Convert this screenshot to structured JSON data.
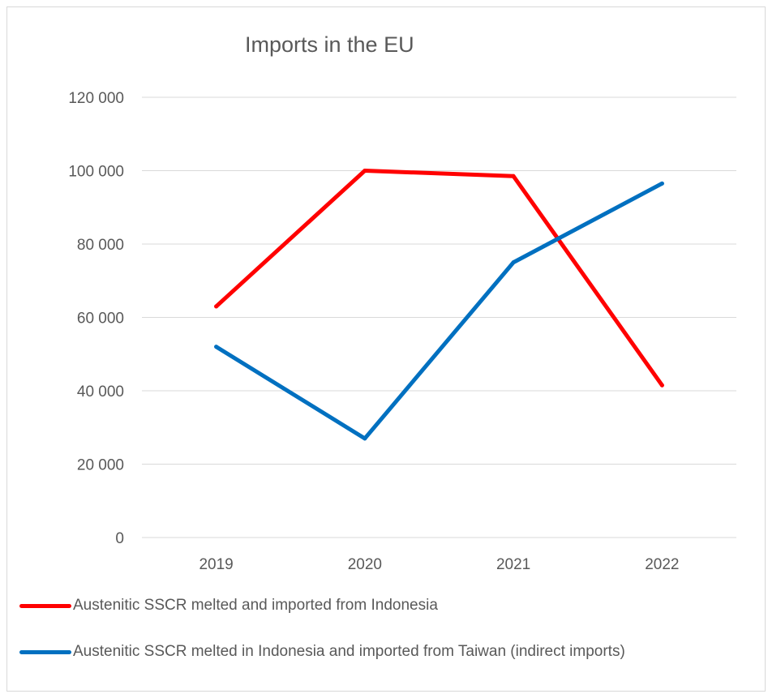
{
  "chart_data": {
    "type": "line",
    "title": "Imports in the EU",
    "xlabel": "",
    "ylabel": "",
    "categories": [
      "2019",
      "2020",
      "2021",
      "2022"
    ],
    "ylim": [
      0,
      120000
    ],
    "yticks": [
      0,
      20000,
      40000,
      60000,
      80000,
      100000,
      120000
    ],
    "ytick_labels": [
      "0",
      "20 000",
      "40 000",
      "60 000",
      "80 000",
      "100 000",
      "120 000"
    ],
    "grid": true,
    "legend_position": "bottom",
    "series": [
      {
        "name": "Austenitic SSCR melted and imported from Indonesia",
        "color": "#ff0000",
        "values": [
          63000,
          100000,
          98500,
          41500
        ]
      },
      {
        "name": "Austenitic SSCR melted in Indonesia and imported from Taiwan (indirect imports)",
        "color": "#0070c0",
        "values": [
          52000,
          27000,
          75000,
          96500
        ]
      }
    ]
  }
}
